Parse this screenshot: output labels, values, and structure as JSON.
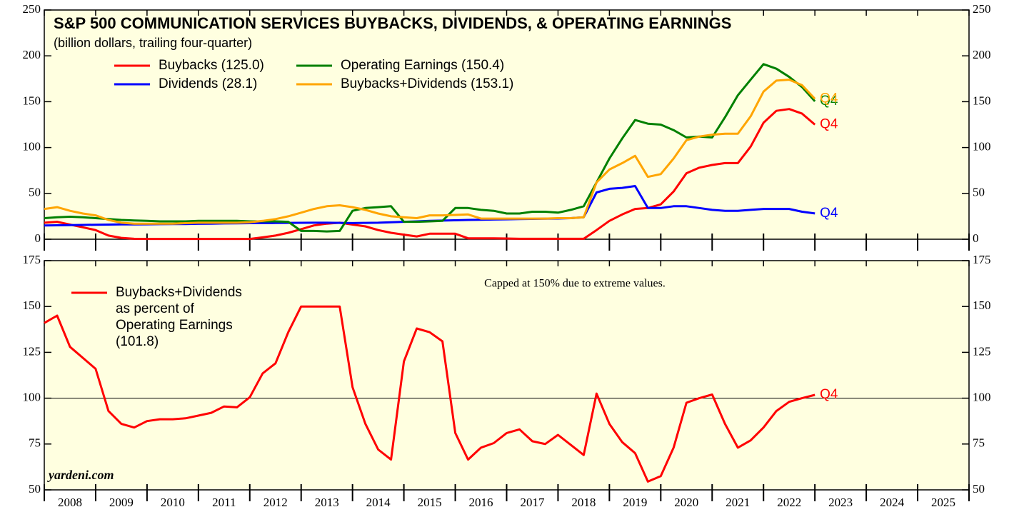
{
  "chart_data": [
    {
      "type": "line",
      "title": "S&P 500 COMMUNICATION SERVICES BUYBACKS, DIVIDENDS, & OPERATING EARNINGS",
      "subtitle": "(billion dollars, trailing four-quarter)",
      "background": "#ffffe0",
      "x": [
        2008,
        2008.25,
        2008.5,
        2008.75,
        2009,
        2009.25,
        2009.5,
        2009.75,
        2010,
        2010.25,
        2010.5,
        2010.75,
        2011,
        2011.25,
        2011.5,
        2011.75,
        2012,
        2012.25,
        2012.5,
        2012.75,
        2013,
        2013.25,
        2013.5,
        2013.75,
        2014,
        2014.25,
        2014.5,
        2014.75,
        2015,
        2015.25,
        2015.5,
        2015.75,
        2016,
        2016.25,
        2016.5,
        2016.75,
        2017,
        2017.25,
        2017.5,
        2017.75,
        2018,
        2018.25,
        2018.5,
        2018.75,
        2019,
        2019.25,
        2019.5,
        2019.75,
        2020,
        2020.25,
        2020.5,
        2020.75,
        2021,
        2021.25,
        2021.5,
        2021.75,
        2022,
        2022.25,
        2022.5,
        2022.75,
        2023
      ],
      "xlim": [
        2008,
        2026
      ],
      "xticks": [
        2008,
        2009,
        2010,
        2011,
        2012,
        2013,
        2014,
        2015,
        2016,
        2017,
        2018,
        2019,
        2020,
        2021,
        2022,
        2023,
        2024,
        2025,
        2026
      ],
      "ylim": [
        0,
        250
      ],
      "yticks": [
        0,
        50,
        100,
        150,
        200,
        250
      ],
      "series": [
        {
          "name": "Buybacks (125.0)",
          "color": "#ff0000",
          "end_label": "Q4",
          "values": [
            18,
            19,
            16,
            13,
            10,
            4,
            1.5,
            0.5,
            0.3,
            0.3,
            0.3,
            0.3,
            0.3,
            0.3,
            0.3,
            0.3,
            0.3,
            2,
            4,
            7,
            11,
            15,
            17,
            18,
            16,
            14,
            10,
            7,
            5,
            3,
            6,
            6,
            6,
            1,
            1,
            1,
            0.8,
            0.5,
            0.5,
            0.5,
            0.5,
            0.5,
            0.5,
            10,
            20,
            27,
            33,
            34,
            38,
            52,
            72,
            78,
            81,
            83,
            83,
            101,
            127,
            140,
            142,
            137,
            125
          ]
        },
        {
          "name": "Dividends (28.1)",
          "color": "#0000ff",
          "end_label": "Q4",
          "values": [
            15,
            15.2,
            15.4,
            15.6,
            15.8,
            16,
            16.1,
            16.2,
            16.3,
            16.4,
            16.5,
            16.6,
            16.8,
            17,
            17.2,
            17.3,
            17.5,
            17.6,
            17.7,
            17.8,
            17.9,
            18,
            18,
            17.8,
            17.6,
            17.8,
            18,
            18.5,
            19,
            19.5,
            20,
            20.3,
            20.6,
            21,
            21.3,
            21.5,
            21.7,
            22,
            22.2,
            22.4,
            22.6,
            23,
            24,
            51,
            55,
            56,
            58,
            34,
            34,
            36,
            36,
            34,
            32,
            31,
            31,
            32,
            33,
            33,
            33,
            30,
            28.1
          ]
        },
        {
          "name": "Operating Earnings (150.4)",
          "color": "#008000",
          "end_label": "Q4",
          "values": [
            23,
            24,
            24.5,
            24,
            23,
            22,
            21,
            20.5,
            20,
            19.5,
            19.5,
            19.5,
            20,
            20,
            20,
            20,
            19.5,
            19.5,
            19.5,
            19,
            9,
            9,
            8.5,
            9,
            31,
            34,
            35,
            36,
            19,
            19,
            19.5,
            20,
            34,
            34,
            32,
            31,
            28,
            28,
            30,
            30,
            29,
            32,
            36,
            62,
            88,
            110,
            130,
            126,
            125,
            119,
            111,
            112,
            111,
            133,
            157,
            174,
            191,
            186,
            177,
            166,
            150.4
          ]
        },
        {
          "name": "Buybacks+Dividends (153.1)",
          "color": "#ffa500",
          "end_label": "Q4",
          "values": [
            33,
            35,
            31,
            28,
            26,
            21,
            18,
            17,
            17,
            17,
            17,
            17.5,
            18,
            18,
            18,
            18,
            18.5,
            20,
            22,
            25,
            29,
            33,
            36,
            37,
            35,
            32,
            28,
            25,
            24,
            23,
            26,
            26,
            26.5,
            27,
            22.5,
            22.5,
            22.5,
            22.5,
            22.5,
            22.5,
            23,
            23,
            24,
            62,
            76,
            83,
            91,
            68,
            71,
            88,
            108,
            112,
            114,
            115,
            115,
            134,
            161,
            173,
            174,
            168,
            153.1
          ]
        }
      ]
    },
    {
      "type": "line",
      "background": "#ffffe0",
      "annotation": "Capped at 150% due to extreme values.",
      "source": "yardeni.com",
      "x": [
        2008,
        2008.25,
        2008.5,
        2008.75,
        2009,
        2009.25,
        2009.5,
        2009.75,
        2010,
        2010.25,
        2010.5,
        2010.75,
        2011,
        2011.25,
        2011.5,
        2011.75,
        2012,
        2012.25,
        2012.5,
        2012.75,
        2013,
        2013.25,
        2013.5,
        2013.75,
        2014,
        2014.25,
        2014.5,
        2014.75,
        2015,
        2015.25,
        2015.5,
        2015.75,
        2016,
        2016.25,
        2016.5,
        2016.75,
        2017,
        2017.25,
        2017.5,
        2017.75,
        2018,
        2018.25,
        2018.5,
        2018.75,
        2019,
        2019.25,
        2019.5,
        2019.75,
        2020,
        2020.25,
        2020.5,
        2020.75,
        2021,
        2021.25,
        2021.5,
        2021.75,
        2022,
        2022.25,
        2022.5,
        2022.75,
        2023
      ],
      "xlim": [
        2008,
        2026
      ],
      "xticks": [
        2008,
        2009,
        2010,
        2011,
        2012,
        2013,
        2014,
        2015,
        2016,
        2017,
        2018,
        2019,
        2020,
        2021,
        2022,
        2023,
        2024,
        2025,
        2026
      ],
      "x_labels": [
        2008,
        2009,
        2010,
        2011,
        2012,
        2013,
        2014,
        2015,
        2016,
        2017,
        2018,
        2019,
        2020,
        2021,
        2022,
        2023,
        2024,
        2025
      ],
      "ylim": [
        50,
        175
      ],
      "yticks": [
        50,
        75,
        100,
        125,
        150,
        175
      ],
      "hline": 100,
      "series": [
        {
          "name": [
            "Buybacks+Dividends",
            "as percent of",
            "Operating Earnings",
            "(101.8)"
          ],
          "color": "#ff0000",
          "end_label": "Q4",
          "values": [
            141,
            145,
            128,
            122,
            116,
            93,
            86,
            84,
            87.5,
            88.5,
            88.5,
            89,
            90.5,
            92,
            95.5,
            95,
            100.5,
            113.5,
            119,
            136,
            150,
            150,
            150,
            150,
            106,
            86,
            72,
            66.5,
            120,
            138,
            136,
            131,
            81,
            66.5,
            73,
            75.5,
            81,
            83,
            76.5,
            75,
            80,
            74.5,
            69,
            102.5,
            86,
            76,
            70,
            54.5,
            57.5,
            73,
            97.5,
            100,
            102,
            86,
            73,
            77,
            84,
            93,
            98,
            100,
            101.8
          ]
        }
      ]
    }
  ]
}
